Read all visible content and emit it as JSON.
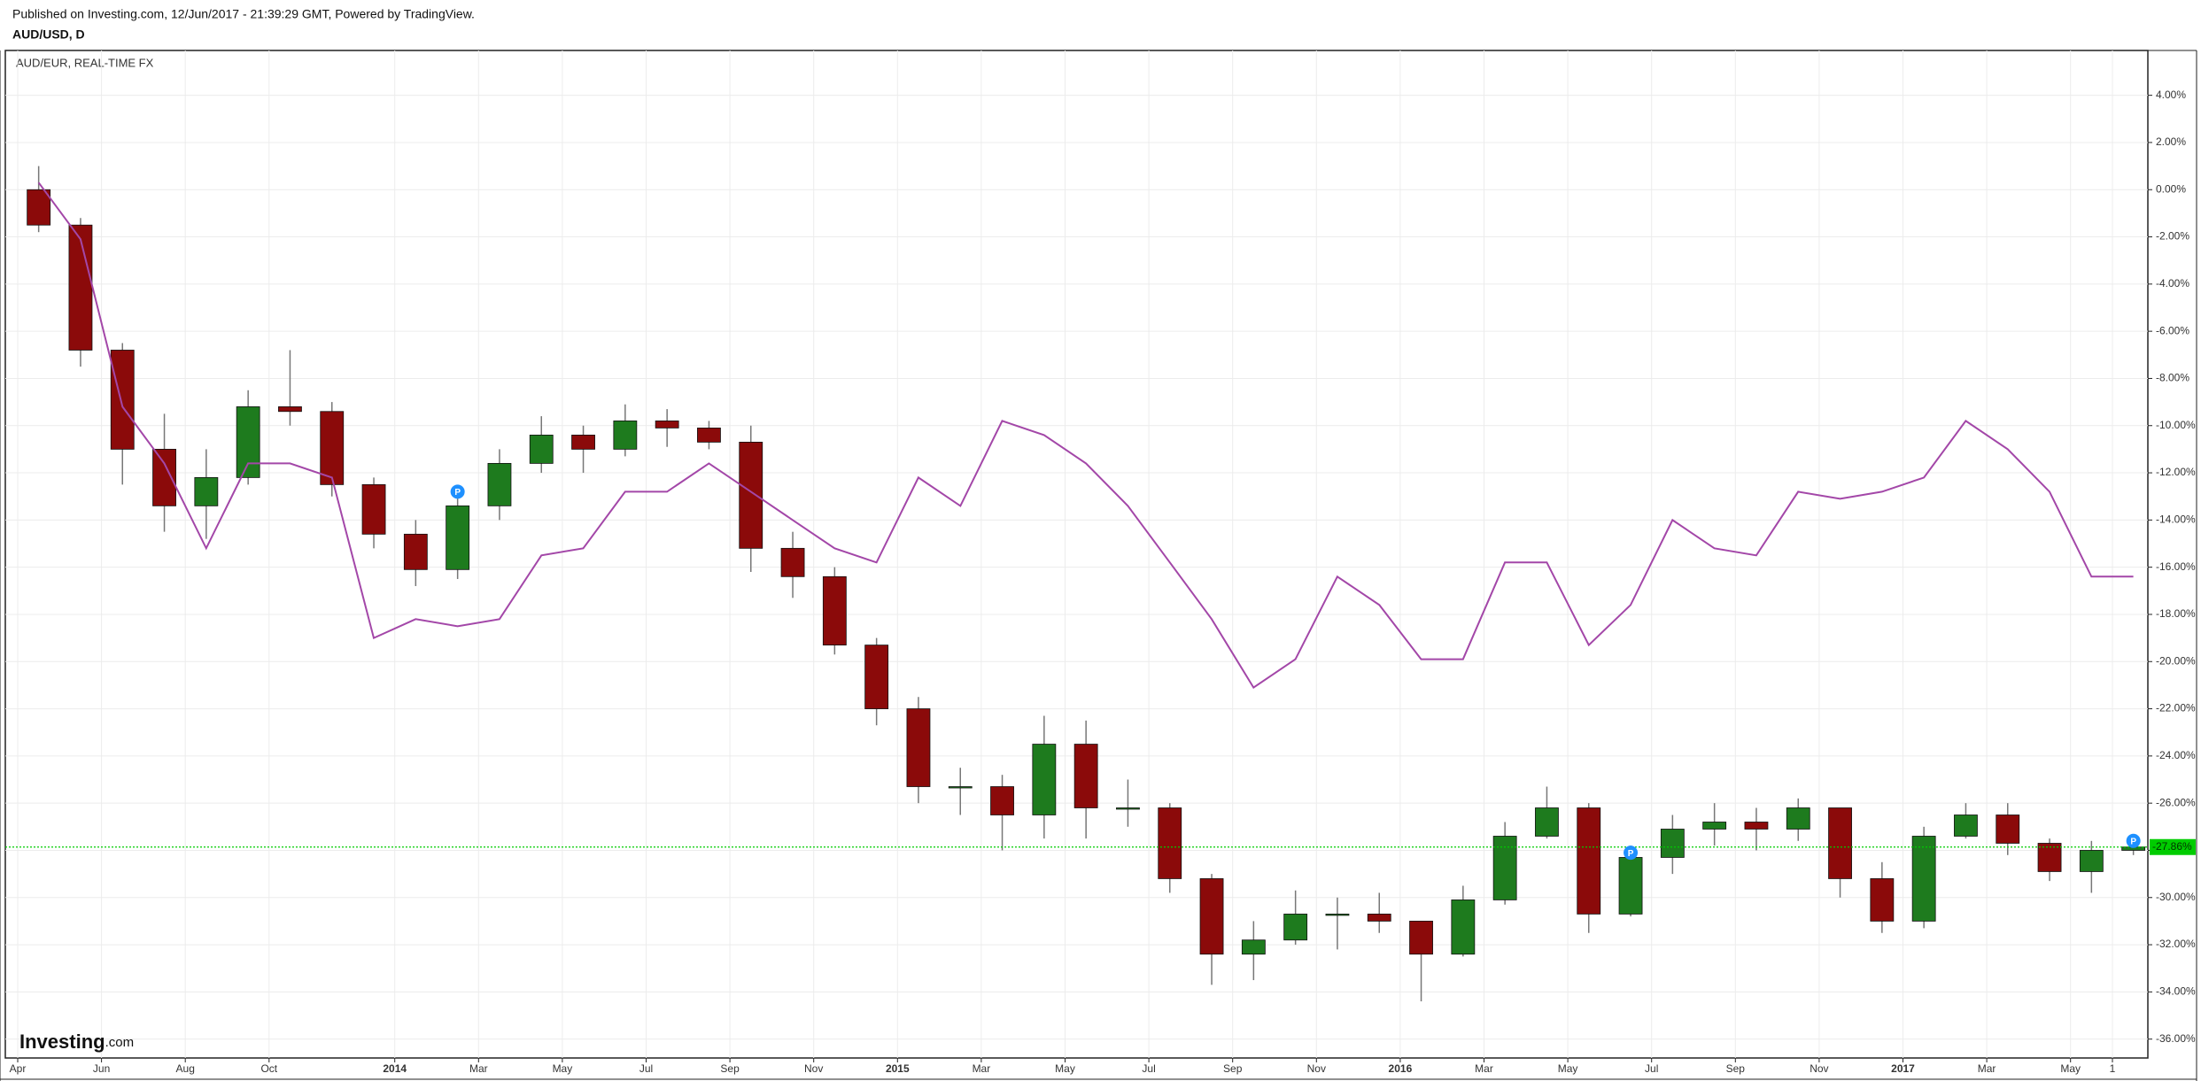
{
  "chart_data": {
    "type": "candlestick",
    "subtitle": "Published on Investing.com, 12/Jun/2017 - 21:39:29 GMT, Powered by TradingView.",
    "title": "AUD/USD, D",
    "categories": [
      "Apr",
      null,
      "Jun",
      null,
      "Aug",
      null,
      "Oct",
      null,
      null,
      "2014",
      null,
      "Mar",
      null,
      "May",
      null,
      "Jul",
      null,
      "Sep",
      null,
      "Nov",
      null,
      "2015",
      null,
      "Mar",
      null,
      "May",
      null,
      "Jul",
      null,
      "Sep",
      null,
      "Nov",
      null,
      "2016",
      null,
      "Mar",
      null,
      "May",
      null,
      "Jul",
      null,
      "Sep",
      null,
      "Nov",
      null,
      "2017",
      null,
      "Mar",
      null,
      "May",
      "1"
    ],
    "ohlc": {
      "up_color": "#1e7b1e",
      "down_color": "#8b0a0a",
      "wick_color": "#777777",
      "open": [
        0,
        -1.5,
        -6.8,
        -11,
        -13.4,
        -12.2,
        -9.2,
        -9.4,
        -12.5,
        -14.6,
        -16.1,
        -13.4,
        -11.6,
        -10.4,
        -11,
        -9.8,
        -10.1,
        -10.7,
        -15.2,
        -16.4,
        -19.3,
        -22,
        -25.3,
        -25.3,
        -26.5,
        -23.5,
        -26.2,
        -26.2,
        -29.2,
        -32.4,
        -31.8,
        -30.7,
        -30.7,
        -31,
        -32.4,
        -30.1,
        -27.4,
        -26.2,
        -30.7,
        -28.3,
        -27.1,
        -26.8,
        -27.1,
        -26.2,
        -29.2,
        -31,
        -27.4,
        -26.5,
        -27.7,
        -28.9,
        -28
      ],
      "high": [
        1,
        -1.2,
        -6.5,
        -9.5,
        -11,
        -8.5,
        -6.8,
        -9,
        -12.2,
        -14,
        -12.8,
        -11,
        -9.6,
        -10,
        -9.1,
        -9.3,
        -9.8,
        -10,
        -14.5,
        -16,
        -19,
        -21.5,
        -24.5,
        -24.8,
        -22.3,
        -22.5,
        -25,
        -26,
        -29,
        -31,
        -29.7,
        -30,
        -29.8,
        -31,
        -29.5,
        -26.8,
        -25.3,
        -26,
        -27.8,
        -26.5,
        -26,
        -26.2,
        -25.8,
        -26.5,
        -28.5,
        -27,
        -26,
        -26,
        -27.5,
        -27.6,
        -27.6
      ],
      "low": [
        -1.8,
        -7.5,
        -12.5,
        -14.5,
        -14.8,
        -12.5,
        -10,
        -13,
        -15.2,
        -16.8,
        -16.5,
        -14,
        -12,
        -12,
        -11.3,
        -10.9,
        -11,
        -16.2,
        -17.3,
        -19.7,
        -22.7,
        -26,
        -26.5,
        -28,
        -27.5,
        -27.5,
        -27,
        -29.8,
        -33.7,
        -33.5,
        -32,
        -32.2,
        -31.5,
        -34.4,
        -32.5,
        -30.3,
        -27.5,
        -31.5,
        -30.8,
        -29,
        -27.8,
        -28,
        -27.6,
        -30,
        -31.5,
        -31.3,
        -27.5,
        -28.2,
        -29.3,
        -29.8,
        -28.2
      ],
      "close": [
        -1.5,
        -6.8,
        -11,
        -13.4,
        -12.2,
        -9.2,
        -9.4,
        -12.5,
        -14.6,
        -16.1,
        -13.4,
        -11.6,
        -10.4,
        -11,
        -9.8,
        -10.1,
        -10.7,
        -15.2,
        -16.4,
        -19.3,
        -22,
        -25.3,
        -25.3,
        -26.5,
        -23.5,
        -26.2,
        -26.2,
        -29.2,
        -32.4,
        -31.8,
        -30.7,
        -30.7,
        -31,
        -32.4,
        -30.1,
        -27.4,
        -26.2,
        -30.7,
        -28.3,
        -27.1,
        -26.8,
        -27.1,
        -26.2,
        -29.2,
        -31,
        -27.4,
        -26.5,
        -27.7,
        -28.9,
        -28,
        -27.86
      ]
    },
    "comparison": {
      "name": "AUD/EUR, REAL-TIME FX",
      "color": "#a347a8",
      "values": [
        0.3,
        -2.1,
        -9.2,
        -11.6,
        -15.2,
        -11.6,
        -11.6,
        -12.2,
        -19,
        -18.2,
        -18.5,
        -18.2,
        -15.5,
        -15.2,
        -12.8,
        -12.8,
        -11.6,
        -12.8,
        -14,
        -15.2,
        -15.8,
        -12.2,
        -13.4,
        -9.8,
        -10.4,
        -11.6,
        -13.4,
        -15.8,
        -18.2,
        -21.1,
        -19.9,
        -16.4,
        -17.6,
        -19.9,
        -19.9,
        -15.8,
        -15.8,
        -19.3,
        -17.6,
        -14,
        -15.2,
        -15.5,
        -12.8,
        -13.1,
        -12.8,
        -12.2,
        -9.8,
        -11,
        -12.8,
        -16.4,
        -16.4
      ]
    },
    "last_value": {
      "value": -27.86,
      "label": "-27.86%",
      "color": "#00cc00"
    },
    "events": [
      {
        "index": 10,
        "value": -12.8,
        "label": "P"
      },
      {
        "index": 38,
        "value": -28.1,
        "label": "P"
      },
      {
        "index": 50,
        "value": -27.6,
        "label": "P"
      }
    ],
    "ylim": [
      -36.8,
      5.9
    ],
    "yticks": [
      {
        "value": 4,
        "label": "4.00%"
      },
      {
        "value": 2,
        "label": "2.00%"
      },
      {
        "value": 0,
        "label": "0.00%"
      },
      {
        "value": -2,
        "label": "-2.00%"
      },
      {
        "value": -4,
        "label": "-4.00%"
      },
      {
        "value": -6,
        "label": "-6.00%"
      },
      {
        "value": -8,
        "label": "-8.00%"
      },
      {
        "value": -10,
        "label": "-10.00%"
      },
      {
        "value": -12,
        "label": "-12.00%"
      },
      {
        "value": -14,
        "label": "-14.00%"
      },
      {
        "value": -16,
        "label": "-16.00%"
      },
      {
        "value": -18,
        "label": "-18.00%"
      },
      {
        "value": -20,
        "label": "-20.00%"
      },
      {
        "value": -22,
        "label": "-22.00%"
      },
      {
        "value": -24,
        "label": "-24.00%"
      },
      {
        "value": -26,
        "label": "-26.00%"
      },
      {
        "value": -28,
        "label": "-28.00%"
      },
      {
        "value": -30,
        "label": "-30.00%"
      },
      {
        "value": -32,
        "label": "-32.00%"
      },
      {
        "value": -34,
        "label": "-34.00%"
      },
      {
        "value": -36,
        "label": "-36.00%"
      }
    ],
    "grid": true,
    "logo": {
      "text": "Investing",
      "suffix": ".com"
    }
  }
}
